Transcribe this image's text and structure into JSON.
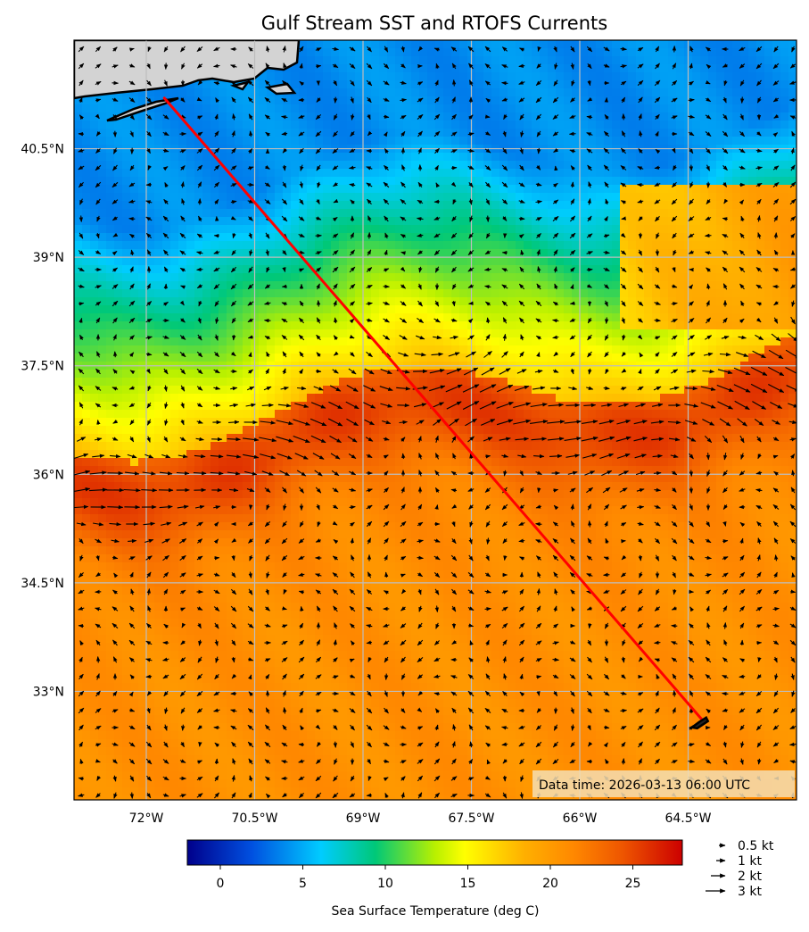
{
  "title": "Gulf Stream SST and RTOFS Currents",
  "data_time": "Data time: 2026-03-13 06:00 UTC",
  "map": {
    "lon_range": [
      -73.0,
      -63.0
    ],
    "lat_range": [
      31.5,
      42.0
    ],
    "lat_ticks": [
      {
        "value": 40.5,
        "label": "40.5°N"
      },
      {
        "value": 39.0,
        "label": "39°N"
      },
      {
        "value": 37.5,
        "label": "37.5°N"
      },
      {
        "value": 36.0,
        "label": "36°N"
      },
      {
        "value": 34.5,
        "label": "34.5°N"
      },
      {
        "value": 33.0,
        "label": "33°N"
      }
    ],
    "lon_ticks": [
      {
        "value": -72.0,
        "label": "72°W"
      },
      {
        "value": -70.5,
        "label": "70.5°W"
      },
      {
        "value": -69.0,
        "label": "69°W"
      },
      {
        "value": -67.5,
        "label": "67.5°W"
      },
      {
        "value": -66.0,
        "label": "66°W"
      },
      {
        "value": -64.5,
        "label": "64.5°W"
      }
    ],
    "route": {
      "start": [
        -71.75,
        41.2
      ],
      "end": [
        -64.3,
        32.6
      ],
      "color": "#ff0000"
    },
    "land_color": "#d3d3d3"
  },
  "colorbar": {
    "label": "Sea Surface Temperature (deg C)",
    "range": [
      -2,
      28
    ],
    "ticks": [
      {
        "value": 0,
        "label": "0"
      },
      {
        "value": 5,
        "label": "5"
      },
      {
        "value": 10,
        "label": "10"
      },
      {
        "value": 15,
        "label": "15"
      },
      {
        "value": 20,
        "label": "20"
      },
      {
        "value": 25,
        "label": "25"
      }
    ],
    "stops": [
      "#00008b",
      "#0050e0",
      "#00ccff",
      "#00c878",
      "#b8f000",
      "#ffff00",
      "#ffb000",
      "#ff8800",
      "#ee5500",
      "#cc0000"
    ]
  },
  "speed_legend": [
    {
      "value": 0.5,
      "label": "0.5 kt"
    },
    {
      "value": 1,
      "label": "1 kt"
    },
    {
      "value": 2,
      "label": "2 kt"
    },
    {
      "value": 3,
      "label": "3 kt"
    }
  ]
}
